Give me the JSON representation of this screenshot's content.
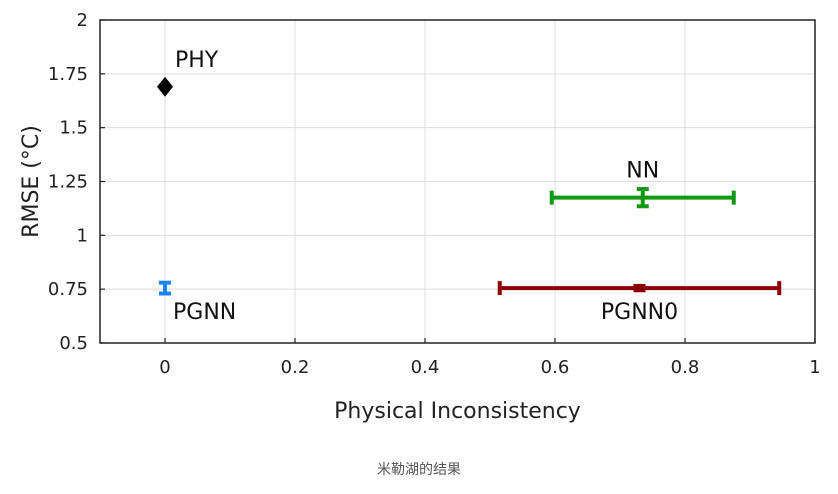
{
  "caption": "米勒湖的结果",
  "chart_data": {
    "type": "scatter",
    "xlabel": "Physical Inconsistency",
    "ylabel": "RMSE (°C)",
    "xlim": [
      -0.1,
      1
    ],
    "ylim": [
      0.5,
      2
    ],
    "x_ticks": [
      "0",
      "0.2",
      "0.4",
      "0.6",
      "0.8",
      "1"
    ],
    "y_ticks": [
      "0.5",
      "0.75",
      "1",
      "1.25",
      "1.5",
      "1.75",
      "2"
    ],
    "grid": true,
    "series": [
      {
        "name": "PHY",
        "x": 0.0,
        "y": 1.69,
        "x_err": 0.0,
        "y_err": 0.0,
        "color": "#000000",
        "marker": "diamond",
        "label_pos": "above"
      },
      {
        "name": "NN",
        "x": 0.735,
        "y": 1.175,
        "x_err": 0.14,
        "y_err": 0.04,
        "color": "#119911",
        "marker": "errorbar",
        "label_pos": "above"
      },
      {
        "name": "PGNN",
        "x": 0.0,
        "y": 0.755,
        "x_err": 0.0,
        "y_err": 0.025,
        "color": "#1a85ff",
        "marker": "errorbar",
        "label_pos": "below"
      },
      {
        "name": "PGNN0",
        "x": 0.73,
        "y": 0.755,
        "x_err": 0.215,
        "y_err": 0.01,
        "color": "#8b0000",
        "marker": "errorbar",
        "label_pos": "below"
      }
    ]
  }
}
